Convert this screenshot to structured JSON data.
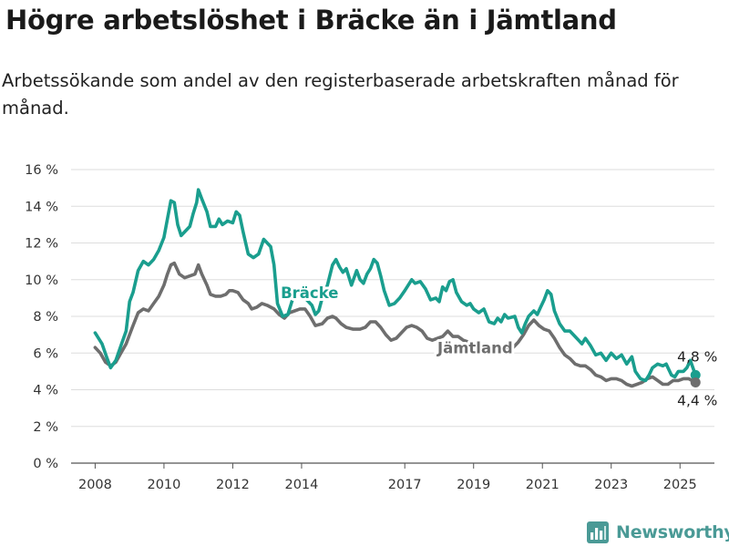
{
  "title": "Högre arbetslöshet i Bräcke än i Jämtland",
  "subtitle": "Arbetssökande som andel av den registerbaserade arbetskraften månad för månad.",
  "brand": {
    "name": "Newsworthy",
    "icon": "bar-chart-logo-icon",
    "color": "#4a9a96"
  },
  "chart_data": {
    "type": "line",
    "title": "Högre arbetslöshet i Bräcke än i Jämtland",
    "xlabel": "",
    "ylabel": "",
    "ylim": [
      0,
      16
    ],
    "yticks": [
      0,
      2,
      4,
      6,
      8,
      10,
      12,
      14,
      16
    ],
    "ytick_labels": [
      "0 %",
      "2 %",
      "4 %",
      "6 %",
      "8 %",
      "10 %",
      "12 %",
      "14 %",
      "16 %"
    ],
    "xlim": [
      2007.3,
      2026.0
    ],
    "xticks": [
      2008,
      2010,
      2012,
      2014,
      2017,
      2019,
      2021,
      2023,
      2025
    ],
    "xtick_labels": [
      "2008",
      "2010",
      "2012",
      "2014",
      "2017",
      "2019",
      "2021",
      "2023",
      "2025"
    ],
    "grid": true,
    "legend": "inline labels",
    "series": [
      {
        "name": "Bräcke",
        "color": "#1a9e8e",
        "last_value_label": "4,8 %",
        "points": [
          [
            2008.0,
            7.1
          ],
          [
            2008.2,
            6.5
          ],
          [
            2008.35,
            5.7
          ],
          [
            2008.45,
            5.2
          ],
          [
            2008.6,
            5.6
          ],
          [
            2008.75,
            6.4
          ],
          [
            2008.9,
            7.2
          ],
          [
            2009.0,
            8.8
          ],
          [
            2009.1,
            9.3
          ],
          [
            2009.25,
            10.5
          ],
          [
            2009.4,
            11.0
          ],
          [
            2009.55,
            10.8
          ],
          [
            2009.7,
            11.1
          ],
          [
            2009.85,
            11.6
          ],
          [
            2010.0,
            12.3
          ],
          [
            2010.1,
            13.3
          ],
          [
            2010.2,
            14.3
          ],
          [
            2010.3,
            14.2
          ],
          [
            2010.4,
            13.0
          ],
          [
            2010.5,
            12.4
          ],
          [
            2010.6,
            12.6
          ],
          [
            2010.75,
            12.9
          ],
          [
            2010.85,
            13.6
          ],
          [
            2010.95,
            14.2
          ],
          [
            2011.0,
            14.9
          ],
          [
            2011.1,
            14.4
          ],
          [
            2011.25,
            13.7
          ],
          [
            2011.35,
            12.9
          ],
          [
            2011.5,
            12.9
          ],
          [
            2011.6,
            13.3
          ],
          [
            2011.7,
            13.0
          ],
          [
            2011.85,
            13.2
          ],
          [
            2012.0,
            13.1
          ],
          [
            2012.1,
            13.7
          ],
          [
            2012.2,
            13.5
          ],
          [
            2012.3,
            12.6
          ],
          [
            2012.45,
            11.4
          ],
          [
            2012.6,
            11.2
          ],
          [
            2012.75,
            11.4
          ],
          [
            2012.9,
            12.2
          ],
          [
            2013.0,
            12.0
          ],
          [
            2013.1,
            11.8
          ],
          [
            2013.2,
            10.8
          ],
          [
            2013.3,
            8.7
          ],
          [
            2013.45,
            8.0
          ],
          [
            2013.6,
            8.1
          ],
          [
            2013.75,
            9.0
          ],
          [
            2013.9,
            9.4
          ],
          [
            2014.0,
            9.4
          ],
          [
            2014.1,
            9.0
          ],
          [
            2014.2,
            8.8
          ],
          [
            2014.3,
            8.6
          ],
          [
            2014.4,
            8.1
          ],
          [
            2014.5,
            8.3
          ],
          [
            2014.6,
            9.0
          ],
          [
            2014.75,
            9.7
          ],
          [
            2014.9,
            10.8
          ],
          [
            2015.0,
            11.1
          ],
          [
            2015.1,
            10.7
          ],
          [
            2015.2,
            10.4
          ],
          [
            2015.3,
            10.6
          ],
          [
            2015.45,
            9.7
          ],
          [
            2015.6,
            10.5
          ],
          [
            2015.7,
            10.0
          ],
          [
            2015.8,
            9.8
          ],
          [
            2015.9,
            10.3
          ],
          [
            2016.0,
            10.6
          ],
          [
            2016.1,
            11.1
          ],
          [
            2016.2,
            10.9
          ],
          [
            2016.3,
            10.2
          ],
          [
            2016.4,
            9.4
          ],
          [
            2016.55,
            8.6
          ],
          [
            2016.7,
            8.7
          ],
          [
            2016.85,
            9.0
          ],
          [
            2017.0,
            9.4
          ],
          [
            2017.1,
            9.7
          ],
          [
            2017.2,
            10.0
          ],
          [
            2017.3,
            9.8
          ],
          [
            2017.45,
            9.9
          ],
          [
            2017.6,
            9.5
          ],
          [
            2017.75,
            8.9
          ],
          [
            2017.9,
            9.0
          ],
          [
            2018.0,
            8.8
          ],
          [
            2018.1,
            9.6
          ],
          [
            2018.2,
            9.4
          ],
          [
            2018.3,
            9.9
          ],
          [
            2018.4,
            10.0
          ],
          [
            2018.5,
            9.3
          ],
          [
            2018.65,
            8.8
          ],
          [
            2018.8,
            8.6
          ],
          [
            2018.9,
            8.7
          ],
          [
            2019.0,
            8.4
          ],
          [
            2019.15,
            8.2
          ],
          [
            2019.3,
            8.4
          ],
          [
            2019.45,
            7.7
          ],
          [
            2019.6,
            7.6
          ],
          [
            2019.7,
            7.9
          ],
          [
            2019.8,
            7.7
          ],
          [
            2019.9,
            8.1
          ],
          [
            2020.0,
            7.9
          ],
          [
            2020.2,
            8.0
          ],
          [
            2020.3,
            7.4
          ],
          [
            2020.4,
            7.1
          ],
          [
            2020.5,
            7.6
          ],
          [
            2020.6,
            8.0
          ],
          [
            2020.75,
            8.3
          ],
          [
            2020.85,
            8.1
          ],
          [
            2020.95,
            8.5
          ],
          [
            2021.05,
            8.9
          ],
          [
            2021.15,
            9.4
          ],
          [
            2021.25,
            9.2
          ],
          [
            2021.35,
            8.3
          ],
          [
            2021.5,
            7.6
          ],
          [
            2021.65,
            7.2
          ],
          [
            2021.8,
            7.2
          ],
          [
            2021.95,
            6.9
          ],
          [
            2022.05,
            6.7
          ],
          [
            2022.15,
            6.5
          ],
          [
            2022.25,
            6.8
          ],
          [
            2022.4,
            6.4
          ],
          [
            2022.55,
            5.9
          ],
          [
            2022.7,
            6.0
          ],
          [
            2022.85,
            5.6
          ],
          [
            2023.0,
            6.0
          ],
          [
            2023.15,
            5.7
          ],
          [
            2023.3,
            5.9
          ],
          [
            2023.45,
            5.4
          ],
          [
            2023.6,
            5.8
          ],
          [
            2023.7,
            5.0
          ],
          [
            2023.85,
            4.6
          ],
          [
            2024.0,
            4.5
          ],
          [
            2024.1,
            4.8
          ],
          [
            2024.2,
            5.2
          ],
          [
            2024.35,
            5.4
          ],
          [
            2024.5,
            5.3
          ],
          [
            2024.6,
            5.4
          ],
          [
            2024.75,
            4.8
          ],
          [
            2024.85,
            4.7
          ],
          [
            2024.95,
            5.0
          ],
          [
            2025.1,
            5.0
          ],
          [
            2025.2,
            5.2
          ],
          [
            2025.3,
            5.6
          ],
          [
            2025.45,
            4.8
          ]
        ]
      },
      {
        "name": "Jämtland",
        "color": "#6e6e6e",
        "last_value_label": "4,4 %",
        "points": [
          [
            2008.0,
            6.3
          ],
          [
            2008.15,
            6.0
          ],
          [
            2008.3,
            5.5
          ],
          [
            2008.45,
            5.3
          ],
          [
            2008.6,
            5.5
          ],
          [
            2008.75,
            6.0
          ],
          [
            2008.9,
            6.5
          ],
          [
            2009.0,
            7.0
          ],
          [
            2009.1,
            7.5
          ],
          [
            2009.25,
            8.2
          ],
          [
            2009.4,
            8.4
          ],
          [
            2009.55,
            8.3
          ],
          [
            2009.7,
            8.7
          ],
          [
            2009.85,
            9.1
          ],
          [
            2010.0,
            9.7
          ],
          [
            2010.1,
            10.3
          ],
          [
            2010.2,
            10.8
          ],
          [
            2010.3,
            10.9
          ],
          [
            2010.45,
            10.3
          ],
          [
            2010.6,
            10.1
          ],
          [
            2010.75,
            10.2
          ],
          [
            2010.9,
            10.3
          ],
          [
            2011.0,
            10.8
          ],
          [
            2011.1,
            10.3
          ],
          [
            2011.25,
            9.7
          ],
          [
            2011.35,
            9.2
          ],
          [
            2011.5,
            9.1
          ],
          [
            2011.65,
            9.1
          ],
          [
            2011.8,
            9.2
          ],
          [
            2011.9,
            9.4
          ],
          [
            2012.0,
            9.4
          ],
          [
            2012.15,
            9.3
          ],
          [
            2012.3,
            8.9
          ],
          [
            2012.45,
            8.7
          ],
          [
            2012.55,
            8.4
          ],
          [
            2012.7,
            8.5
          ],
          [
            2012.85,
            8.7
          ],
          [
            2013.0,
            8.6
          ],
          [
            2013.2,
            8.4
          ],
          [
            2013.35,
            8.1
          ],
          [
            2013.5,
            7.9
          ],
          [
            2013.65,
            8.2
          ],
          [
            2013.8,
            8.3
          ],
          [
            2013.95,
            8.4
          ],
          [
            2014.1,
            8.4
          ],
          [
            2014.25,
            8.0
          ],
          [
            2014.4,
            7.5
          ],
          [
            2014.6,
            7.6
          ],
          [
            2014.75,
            7.9
          ],
          [
            2014.9,
            8.0
          ],
          [
            2015.0,
            7.9
          ],
          [
            2015.15,
            7.6
          ],
          [
            2015.3,
            7.4
          ],
          [
            2015.5,
            7.3
          ],
          [
            2015.7,
            7.3
          ],
          [
            2015.85,
            7.4
          ],
          [
            2016.0,
            7.7
          ],
          [
            2016.15,
            7.7
          ],
          [
            2016.3,
            7.4
          ],
          [
            2016.45,
            7.0
          ],
          [
            2016.6,
            6.7
          ],
          [
            2016.75,
            6.8
          ],
          [
            2016.9,
            7.1
          ],
          [
            2017.05,
            7.4
          ],
          [
            2017.2,
            7.5
          ],
          [
            2017.35,
            7.4
          ],
          [
            2017.5,
            7.2
          ],
          [
            2017.65,
            6.8
          ],
          [
            2017.8,
            6.7
          ],
          [
            2017.95,
            6.8
          ],
          [
            2018.1,
            6.9
          ],
          [
            2018.25,
            7.2
          ],
          [
            2018.4,
            6.9
          ],
          [
            2018.55,
            6.9
          ],
          [
            2018.7,
            6.7
          ],
          [
            2018.85,
            6.6
          ],
          [
            2019.0,
            6.5
          ],
          [
            2019.2,
            6.3
          ],
          [
            2019.4,
            6.2
          ],
          [
            2019.6,
            6.1
          ],
          [
            2019.8,
            6.1
          ],
          [
            2020.0,
            6.2
          ],
          [
            2020.15,
            6.3
          ],
          [
            2020.3,
            6.6
          ],
          [
            2020.45,
            7.0
          ],
          [
            2020.6,
            7.5
          ],
          [
            2020.75,
            7.8
          ],
          [
            2020.9,
            7.5
          ],
          [
            2021.05,
            7.3
          ],
          [
            2021.2,
            7.2
          ],
          [
            2021.35,
            6.8
          ],
          [
            2021.5,
            6.3
          ],
          [
            2021.65,
            5.9
          ],
          [
            2021.8,
            5.7
          ],
          [
            2021.95,
            5.4
          ],
          [
            2022.1,
            5.3
          ],
          [
            2022.25,
            5.3
          ],
          [
            2022.4,
            5.1
          ],
          [
            2022.55,
            4.8
          ],
          [
            2022.7,
            4.7
          ],
          [
            2022.85,
            4.5
          ],
          [
            2023.0,
            4.6
          ],
          [
            2023.15,
            4.6
          ],
          [
            2023.3,
            4.5
          ],
          [
            2023.45,
            4.3
          ],
          [
            2023.6,
            4.2
          ],
          [
            2023.75,
            4.3
          ],
          [
            2023.9,
            4.4
          ],
          [
            2024.05,
            4.6
          ],
          [
            2024.2,
            4.7
          ],
          [
            2024.35,
            4.5
          ],
          [
            2024.5,
            4.3
          ],
          [
            2024.65,
            4.3
          ],
          [
            2024.8,
            4.5
          ],
          [
            2024.95,
            4.5
          ],
          [
            2025.1,
            4.6
          ],
          [
            2025.25,
            4.6
          ],
          [
            2025.45,
            4.4
          ]
        ]
      }
    ]
  }
}
